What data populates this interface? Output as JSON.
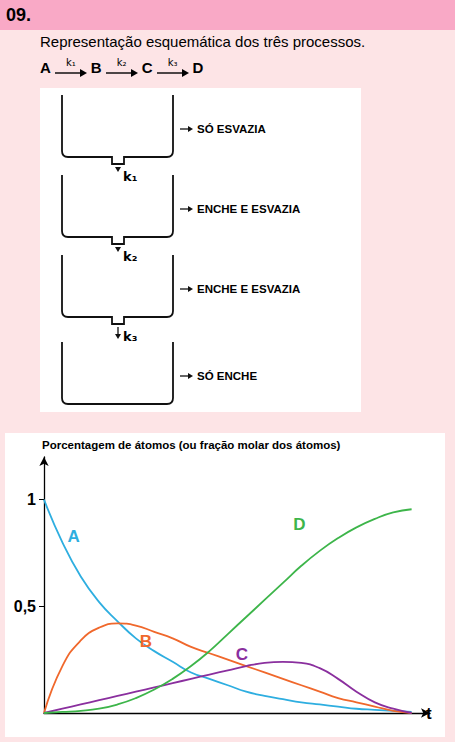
{
  "header": {
    "number": "09."
  },
  "subtitle": "Representação esquemática dos três processos.",
  "reaction": {
    "species": [
      "A",
      "B",
      "C",
      "D"
    ],
    "rate_constants": [
      "k₁",
      "k₂",
      "k₃"
    ]
  },
  "diagram": {
    "tanks": [
      {
        "label": "SÓ ESVAZIA"
      },
      {
        "label": "ENCHE E ESVAZIA"
      },
      {
        "label": "ENCHE E ESVAZIA"
      },
      {
        "label": "SÓ ENCHE"
      }
    ],
    "flows": [
      "k₁",
      "k₂",
      "k₃"
    ]
  },
  "chart_data": {
    "type": "line",
    "y_label": "Porcentagem de átomos (ou fração molar dos átomos)",
    "x_label": "t",
    "x": [
      0,
      0.5,
      1,
      1.5,
      2,
      2.5,
      3,
      3.5,
      4,
      4.5,
      5,
      5.5,
      6,
      6.5,
      7,
      7.5,
      8,
      8.5,
      9,
      9.5,
      10
    ],
    "series": [
      {
        "name": "A",
        "color": "#2eaee0",
        "values": [
          1,
          0.8,
          0.64,
          0.52,
          0.43,
          0.35,
          0.29,
          0.24,
          0.19,
          0.16,
          0.13,
          0.1,
          0.08,
          0.065,
          0.05,
          0.04,
          0.03,
          0.02,
          0.015,
          0.01,
          0.005
        ]
      },
      {
        "name": "B",
        "color": "#f0682c",
        "values": [
          0,
          0.22,
          0.34,
          0.4,
          0.42,
          0.41,
          0.38,
          0.35,
          0.31,
          0.28,
          0.25,
          0.22,
          0.19,
          0.16,
          0.13,
          0.1,
          0.07,
          0.05,
          0.03,
          0.01,
          0
        ]
      },
      {
        "name": "C",
        "color": "#8a2f9e",
        "values": [
          0,
          0.02,
          0.04,
          0.06,
          0.08,
          0.1,
          0.12,
          0.14,
          0.16,
          0.18,
          0.2,
          0.22,
          0.235,
          0.24,
          0.235,
          0.21,
          0.16,
          0.1,
          0.05,
          0.02,
          0
        ]
      },
      {
        "name": "D",
        "color": "#3db54a",
        "values": [
          0,
          0.005,
          0.01,
          0.02,
          0.04,
          0.07,
          0.11,
          0.16,
          0.22,
          0.29,
          0.37,
          0.45,
          0.53,
          0.61,
          0.69,
          0.76,
          0.82,
          0.87,
          0.91,
          0.94,
          0.955
        ]
      }
    ],
    "xlim": [
      0,
      10.5
    ],
    "ylim": [
      0,
      1.2
    ],
    "yticks": [
      {
        "value": 0.5,
        "label": "0,5"
      },
      1
    ],
    "tick_labels": "y",
    "grid": false
  }
}
